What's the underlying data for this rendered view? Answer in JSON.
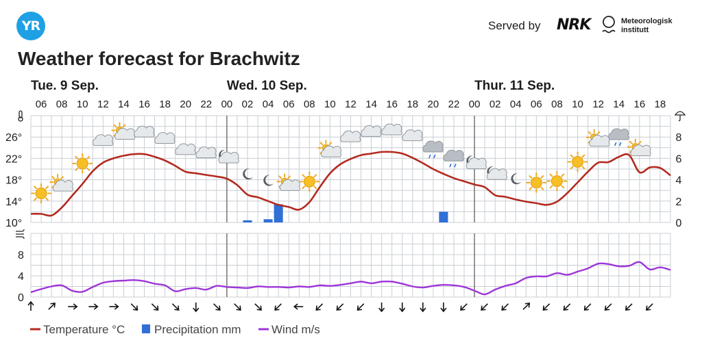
{
  "brand": {
    "logo_text": "YR",
    "served_by": "Served by",
    "nrk": "NRK",
    "met_line1": "Meteorologisk",
    "met_line2": "institutt",
    "accent": "#1fa0e4"
  },
  "title": "Weather forecast for Brachwitz",
  "chart_data": {
    "type": "line",
    "days": [
      {
        "label": "Tue. 9 Sep.",
        "at_hour": 5
      },
      {
        "label": "Wed. 10 Sep.",
        "at_hour": 24
      },
      {
        "label": "Thur. 11 Sep.",
        "at_hour": 48
      }
    ],
    "hour_ticks": [
      "06",
      "08",
      "10",
      "12",
      "14",
      "16",
      "18",
      "20",
      "22",
      "00",
      "02",
      "04",
      "06",
      "08",
      "10",
      "12",
      "14",
      "16",
      "18",
      "20",
      "22",
      "00",
      "02",
      "04",
      "06",
      "08",
      "10",
      "12",
      "14",
      "16",
      "18"
    ],
    "x_start_hour": 5,
    "x_end_hour": 67,
    "temperature": {
      "label": "Temperature °C",
      "color": "#b32a1f",
      "ylim": [
        10,
        30
      ],
      "yticks": [
        "10°",
        "14°",
        "18°",
        "22°",
        "26°"
      ],
      "x": [
        5,
        6,
        7,
        8,
        9,
        10,
        11,
        12,
        13,
        14,
        15,
        16,
        17,
        18,
        19,
        20,
        21,
        22,
        23,
        24,
        25,
        26,
        27,
        28,
        29,
        30,
        31,
        32,
        33,
        34,
        35,
        36,
        37,
        38,
        39,
        40,
        41,
        42,
        43,
        44,
        45,
        46,
        47,
        48,
        49,
        50,
        51,
        52,
        53,
        54,
        55,
        56,
        57,
        58,
        59,
        60,
        61,
        62,
        63,
        64,
        65,
        66,
        67
      ],
      "values": [
        11.6,
        11.6,
        11.3,
        12.8,
        15.0,
        17.2,
        19.6,
        21.2,
        22.0,
        22.5,
        22.8,
        22.8,
        22.3,
        21.6,
        20.6,
        19.5,
        19.2,
        18.9,
        18.6,
        18.2,
        17.0,
        15.2,
        14.7,
        14.0,
        13.3,
        12.9,
        12.4,
        13.8,
        16.6,
        19.2,
        20.9,
        21.9,
        22.6,
        22.9,
        23.2,
        23.2,
        22.9,
        22.1,
        21.1,
        20.0,
        19.1,
        18.3,
        17.7,
        17.1,
        16.6,
        15.1,
        14.8,
        14.3,
        13.9,
        13.6,
        13.3,
        13.9,
        15.5,
        17.5,
        19.5,
        21.2,
        21.3,
        22.3,
        22.6,
        19.4,
        20.3,
        20.2,
        18.8
      ]
    },
    "precipitation": {
      "label": "Precipitation mm",
      "color": "#2f6fd6",
      "ylim": [
        0,
        10
      ],
      "yticks": [
        "0",
        "2",
        "4",
        "6",
        "8"
      ],
      "bars": [
        {
          "hour": 26,
          "value": 0.2
        },
        {
          "hour": 28,
          "value": 0.3
        },
        {
          "hour": 29,
          "value": 1.7
        },
        {
          "hour": 45,
          "value": 1.0
        }
      ]
    },
    "wind": {
      "label": "Wind m/s",
      "color": "#9e35d9",
      "ylim": [
        0,
        12
      ],
      "yticks": [
        "0",
        "4",
        "8"
      ],
      "x": [
        5,
        6,
        7,
        8,
        9,
        10,
        11,
        12,
        13,
        14,
        15,
        16,
        17,
        18,
        19,
        20,
        21,
        22,
        23,
        24,
        25,
        26,
        27,
        28,
        29,
        30,
        31,
        32,
        33,
        34,
        35,
        36,
        37,
        38,
        39,
        40,
        41,
        42,
        43,
        44,
        45,
        46,
        47,
        48,
        49,
        50,
        51,
        52,
        53,
        54,
        55,
        56,
        57,
        58,
        59,
        60,
        61,
        62,
        63,
        64,
        65,
        66,
        67
      ],
      "values": [
        0.9,
        1.5,
        2.0,
        2.2,
        1.2,
        1.0,
        1.9,
        2.7,
        3.0,
        3.1,
        3.2,
        3.0,
        2.5,
        2.2,
        1.1,
        1.5,
        1.7,
        1.4,
        2.1,
        1.9,
        1.8,
        1.7,
        2.0,
        1.9,
        1.9,
        1.8,
        2.0,
        1.9,
        2.2,
        2.1,
        2.3,
        2.6,
        2.9,
        2.6,
        2.9,
        2.9,
        2.5,
        2.0,
        1.8,
        2.1,
        2.3,
        2.2,
        1.9,
        1.2,
        0.5,
        1.4,
        2.1,
        2.6,
        3.6,
        3.9,
        3.9,
        4.5,
        4.2,
        4.8,
        5.4,
        6.3,
        6.2,
        5.8,
        5.9,
        6.6,
        5.2,
        5.6,
        5.1
      ]
    },
    "wind_directions_deg": [
      180,
      225,
      270,
      270,
      270,
      315,
      315,
      315,
      0,
      315,
      315,
      315,
      45,
      90,
      45,
      45,
      45,
      0,
      0,
      0,
      0,
      45,
      45,
      45,
      225,
      45,
      45,
      45,
      45,
      45,
      45,
      45,
      45,
      45,
      45,
      45,
      45,
      45,
      45,
      45,
      45,
      45,
      45,
      45,
      45,
      45,
      45,
      45,
      45,
      45,
      45,
      45,
      45,
      45,
      45,
      45,
      45,
      45,
      45,
      45,
      45,
      45,
      45
    ],
    "wind_directions_shown": [
      180,
      225,
      270,
      270,
      270,
      315,
      315,
      315,
      0,
      315,
      315,
      315,
      45,
      90,
      45,
      45,
      45,
      0,
      0,
      0,
      0,
      45,
      45,
      45,
      225,
      45,
      45,
      45,
      45,
      45,
      45
    ],
    "symbols": [
      {
        "hour": 6,
        "icon": "sun"
      },
      {
        "hour": 8,
        "icon": "partly-cloudy-day"
      },
      {
        "hour": 10,
        "icon": "sun"
      },
      {
        "hour": 12,
        "icon": "cloud"
      },
      {
        "hour": 14,
        "icon": "partly-cloudy-day"
      },
      {
        "hour": 16,
        "icon": "cloud"
      },
      {
        "hour": 18,
        "icon": "cloud"
      },
      {
        "hour": 20,
        "icon": "cloud"
      },
      {
        "hour": 22,
        "icon": "cloud"
      },
      {
        "hour": 24,
        "icon": "partly-cloudy-night"
      },
      {
        "hour": 26,
        "icon": "moon"
      },
      {
        "hour": 28,
        "icon": "moon"
      },
      {
        "hour": 30,
        "icon": "partly-cloudy-day"
      },
      {
        "hour": 32,
        "icon": "sun"
      },
      {
        "hour": 34,
        "icon": "partly-cloudy-day"
      },
      {
        "hour": 36,
        "icon": "cloud"
      },
      {
        "hour": 38,
        "icon": "cloud"
      },
      {
        "hour": 40,
        "icon": "cloud"
      },
      {
        "hour": 42,
        "icon": "cloud"
      },
      {
        "hour": 44,
        "icon": "rain-cloud"
      },
      {
        "hour": 46,
        "icon": "rain-cloud"
      },
      {
        "hour": 48,
        "icon": "partly-cloudy-night"
      },
      {
        "hour": 50,
        "icon": "partly-cloudy-night"
      },
      {
        "hour": 52,
        "icon": "moon"
      },
      {
        "hour": 54,
        "icon": "sun"
      },
      {
        "hour": 56,
        "icon": "sun"
      },
      {
        "hour": 58,
        "icon": "sun"
      },
      {
        "hour": 60,
        "icon": "partly-cloudy-day"
      },
      {
        "hour": 62,
        "icon": "rain-cloud"
      },
      {
        "hour": 64,
        "icon": "partly-cloudy-day"
      }
    ],
    "grid": true,
    "legend_position": "bottom-left"
  }
}
